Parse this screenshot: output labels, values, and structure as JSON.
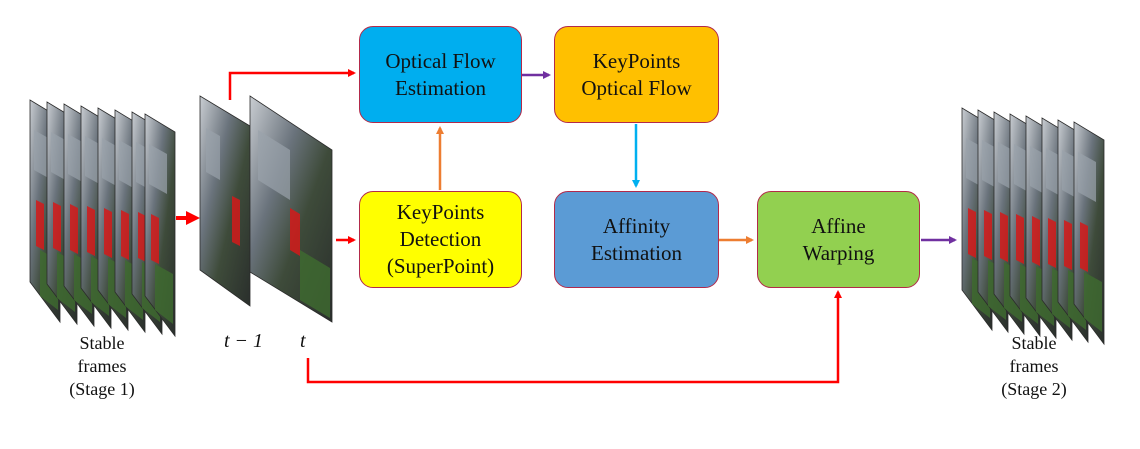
{
  "boxes": {
    "optical_flow_estimation": {
      "line1": "Optical Flow",
      "line2": "Estimation",
      "color": "#00aeef"
    },
    "keypoints_optical_flow": {
      "line1": "KeyPoints",
      "line2": "Optical Flow",
      "color": "#ffc000"
    },
    "keypoints_detection": {
      "line1": "KeyPoints",
      "line2": "Detection",
      "line3": "(SuperPoint)",
      "color": "#ffff00"
    },
    "affinity_estimation": {
      "line1": "Affinity",
      "line2": "Estimation",
      "color": "#5b9bd5"
    },
    "affine_warping": {
      "line1": "Affine",
      "line2": "Warping",
      "color": "#92d050"
    }
  },
  "labels": {
    "input": {
      "line1": "Stable",
      "line2": "frames",
      "line3": "(Stage 1)"
    },
    "output": {
      "line1": "Stable",
      "line2": "frames",
      "line3": "(Stage 2)"
    },
    "prev_frame": "t − 1",
    "curr_frame": "t"
  },
  "colors": {
    "red_arrow": "#ff0000",
    "orange_arrow": "#ed7d31",
    "purple_arrow": "#7030a0",
    "blue_arrow": "#00b0f0",
    "box_border": "#b22a4a"
  },
  "icons": {
    "frame_stack": "video-frame-stack-icon"
  }
}
